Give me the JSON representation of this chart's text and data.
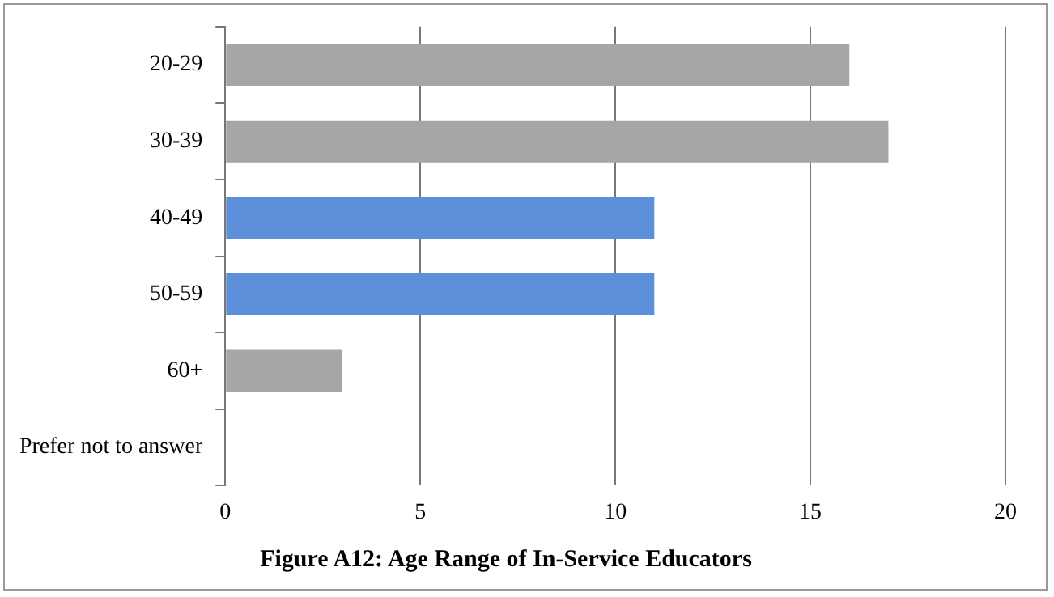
{
  "chart_data": {
    "type": "bar",
    "orientation": "horizontal",
    "title": "Figure A12: Age Range of In-Service Educators",
    "categories": [
      "20-29",
      "30-39",
      "40-49",
      "50-59",
      "60+",
      "Prefer not to answer"
    ],
    "values": [
      16,
      17,
      11,
      11,
      3,
      0
    ],
    "colors": [
      "#a6a6a6",
      "#a6a6a6",
      "#5b8fd9",
      "#5b8fd9",
      "#a6a6a6",
      "#a6a6a6"
    ],
    "xlim": [
      0,
      20
    ],
    "xticks": [
      0,
      5,
      10,
      15,
      20
    ],
    "grid": "x",
    "legend": false
  }
}
